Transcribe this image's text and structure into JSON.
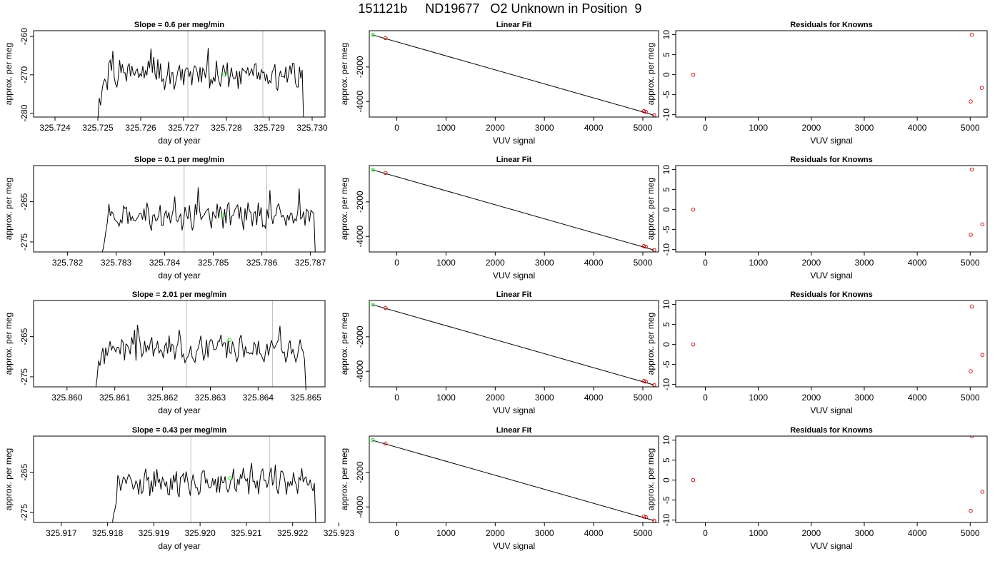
{
  "figure_title": "151121b     ND19677   O2 Unknown in Position  9",
  "colors": {
    "trace": "#000000",
    "vline": "#bebebe",
    "known": "#cc0000",
    "unknown": "#00dd00",
    "fitline": "#000000"
  },
  "chart_data": [
    {
      "type": "line",
      "row": 0,
      "col": 0,
      "title": "Slope =  0.6  per meg/min",
      "xlabel": "day of year",
      "ylabel": "approx. per meg",
      "xlim": [
        325.7235,
        325.7303
      ],
      "ylim": [
        -281,
        -258.5
      ],
      "xticks": [
        "325.724",
        "325.725",
        "325.726",
        "325.727",
        "325.728",
        "325.729",
        "325.730"
      ],
      "yticks": [
        "-260",
        "-270",
        "-280"
      ],
      "trace": {
        "x_start": 325.725,
        "x_end": 325.7298,
        "n": 150,
        "base": -270,
        "amp": 3,
        "ramp_from": -282,
        "seed": 1
      },
      "vlines": [
        325.7271,
        325.72885
      ],
      "unknown_point": {
        "x": 325.72795,
        "y": -270
      }
    },
    {
      "type": "scatter",
      "row": 0,
      "col": 1,
      "title": "Linear Fit",
      "xlabel": "VUV signal",
      "ylabel": "approx. per meg",
      "xlim": [
        -560,
        5320
      ],
      "ylim": [
        -4900,
        100
      ],
      "xticks": [
        "0",
        "1000",
        "2000",
        "3000",
        "4000",
        "5000"
      ],
      "yticks": [
        "-2000",
        "-4000"
      ],
      "fit_line": {
        "x": [
          -500,
          5230
        ],
        "y": [
          -140,
          -4790
        ]
      },
      "known_points": [
        {
          "x": -230,
          "y": -330
        },
        {
          "x": 5020,
          "y": -4560
        },
        {
          "x": 5060,
          "y": -4590
        },
        {
          "x": 5230,
          "y": -4790
        }
      ],
      "unknown_point": {
        "x": -490,
        "y": -140
      }
    },
    {
      "type": "scatter",
      "row": 0,
      "col": 2,
      "title": "Residuals for Knowns",
      "xlabel": "VUV signal",
      "ylabel": "approx. per meg",
      "xlim": [
        -560,
        5320
      ],
      "ylim": [
        -10.6,
        11
      ],
      "xticks": [
        "0",
        "1000",
        "2000",
        "3000",
        "4000",
        "5000"
      ],
      "yticks": [
        "10",
        "5",
        "0",
        "-5",
        "-10"
      ],
      "known_points": [
        {
          "x": -230,
          "y": 0
        },
        {
          "x": 5030,
          "y": 10
        },
        {
          "x": 5010,
          "y": -6.7
        },
        {
          "x": 5220,
          "y": -3.3
        }
      ]
    },
    {
      "type": "line",
      "row": 1,
      "col": 0,
      "title": "Slope =  0.1  per meg/min",
      "xlabel": "day of year",
      "ylabel": "approx. per meg",
      "xlim": [
        325.7813,
        325.7873
      ],
      "ylim": [
        -277.5,
        -256
      ],
      "xticks": [
        "325.782",
        "325.783",
        "325.784",
        "325.785",
        "325.786",
        "325.787"
      ],
      "yticks": [
        "-265",
        "-275"
      ],
      "trace": {
        "x_start": 325.7827,
        "x_end": 325.7871,
        "n": 145,
        "base": -268.5,
        "amp": 2.6,
        "ramp_from": -278,
        "seed": 2
      },
      "vlines": [
        325.7844,
        325.7861
      ],
      "unknown_point": {
        "x": 325.7852,
        "y": -268.5
      }
    },
    {
      "type": "scatter",
      "row": 1,
      "col": 1,
      "title": "Linear Fit",
      "xlabel": "VUV signal",
      "ylabel": "approx. per meg",
      "xlim": [
        -560,
        5320
      ],
      "ylim": [
        -4900,
        100
      ],
      "xticks": [
        "0",
        "1000",
        "2000",
        "3000",
        "4000",
        "5000"
      ],
      "yticks": [
        "-2000",
        "-4000"
      ],
      "fit_line": {
        "x": [
          -500,
          5230
        ],
        "y": [
          -140,
          -4790
        ]
      },
      "known_points": [
        {
          "x": -230,
          "y": -330
        },
        {
          "x": 5020,
          "y": -4560
        },
        {
          "x": 5060,
          "y": -4590
        },
        {
          "x": 5230,
          "y": -4790
        }
      ],
      "unknown_point": {
        "x": -490,
        "y": -140
      }
    },
    {
      "type": "scatter",
      "row": 1,
      "col": 2,
      "title": "Residuals for Knowns",
      "xlabel": "VUV signal",
      "ylabel": "approx. per meg",
      "xlim": [
        -560,
        5320
      ],
      "ylim": [
        -10.6,
        11
      ],
      "xticks": [
        "0",
        "1000",
        "2000",
        "3000",
        "4000",
        "5000"
      ],
      "yticks": [
        "10",
        "5",
        "0",
        "-5",
        "-10"
      ],
      "known_points": [
        {
          "x": -230,
          "y": 0
        },
        {
          "x": 5030,
          "y": 10
        },
        {
          "x": 5010,
          "y": -6.3
        },
        {
          "x": 5230,
          "y": -3.7
        }
      ]
    },
    {
      "type": "line",
      "row": 2,
      "col": 0,
      "title": "Slope =  2.01  per meg/min",
      "xlabel": "day of year",
      "ylabel": "approx. per meg",
      "xlim": [
        325.8593,
        325.8654
      ],
      "ylim": [
        -277.5,
        -256
      ],
      "xticks": [
        "325.860",
        "325.861",
        "325.862",
        "325.863",
        "325.864",
        "325.865"
      ],
      "yticks": [
        "-265",
        "-275"
      ],
      "trace": {
        "x_start": 325.8606,
        "x_end": 325.865,
        "n": 145,
        "base": -268,
        "amp": 2.7,
        "ramp_from": -278,
        "seed": 3
      },
      "vlines": [
        325.8625,
        325.8643
      ],
      "unknown_point": {
        "x": 325.8634,
        "y": -265.8
      }
    },
    {
      "type": "scatter",
      "row": 2,
      "col": 1,
      "title": "Linear Fit",
      "xlabel": "VUV signal",
      "ylabel": "approx. per meg",
      "xlim": [
        -560,
        5320
      ],
      "ylim": [
        -4900,
        100
      ],
      "xticks": [
        "0",
        "1000",
        "2000",
        "3000",
        "4000",
        "5000"
      ],
      "yticks": [
        "-2000",
        "-4000"
      ],
      "fit_line": {
        "x": [
          -500,
          5230
        ],
        "y": [
          -140,
          -4790
        ]
      },
      "known_points": [
        {
          "x": -230,
          "y": -330
        },
        {
          "x": 5020,
          "y": -4560
        },
        {
          "x": 5060,
          "y": -4590
        },
        {
          "x": 5230,
          "y": -4790
        }
      ],
      "unknown_point": {
        "x": -490,
        "y": -140
      }
    },
    {
      "type": "scatter",
      "row": 2,
      "col": 2,
      "title": "Residuals for Knowns",
      "xlabel": "VUV signal",
      "ylabel": "approx. per meg",
      "xlim": [
        -560,
        5320
      ],
      "ylim": [
        -10.6,
        11
      ],
      "xticks": [
        "0",
        "1000",
        "2000",
        "3000",
        "4000",
        "5000"
      ],
      "yticks": [
        "10",
        "5",
        "0",
        "-5",
        "-10"
      ],
      "known_points": [
        {
          "x": -230,
          "y": 0
        },
        {
          "x": 5030,
          "y": 9.5
        },
        {
          "x": 5010,
          "y": -6.7
        },
        {
          "x": 5230,
          "y": -2.6
        }
      ]
    },
    {
      "type": "line",
      "row": 3,
      "col": 0,
      "title": "Slope =  0.43  per meg/min",
      "xlabel": "day of year",
      "ylabel": "approx. per meg",
      "xlim": [
        325.9164,
        325.9227
      ],
      "ylim": [
        -277.5,
        -256
      ],
      "xticks": [
        "325.917",
        "325.918",
        "325.919",
        "325.920",
        "325.921",
        "325.922",
        "325.923"
      ],
      "yticks": [
        "-265",
        "-275"
      ],
      "trace": {
        "x_start": 325.9181,
        "x_end": 325.9225,
        "n": 145,
        "base": -267.5,
        "amp": 2.6,
        "ramp_from": -278,
        "seed": 4
      },
      "vlines": [
        325.9198,
        325.9215
      ],
      "unknown_point": {
        "x": 325.92065,
        "y": -266.5
      }
    },
    {
      "type": "scatter",
      "row": 3,
      "col": 1,
      "title": "Linear Fit",
      "xlabel": "VUV signal",
      "ylabel": "approx. per meg",
      "xlim": [
        -560,
        5320
      ],
      "ylim": [
        -4900,
        100
      ],
      "xticks": [
        "0",
        "1000",
        "2000",
        "3000",
        "4000",
        "5000"
      ],
      "yticks": [
        "-2000",
        "-4000"
      ],
      "fit_line": {
        "x": [
          -500,
          5230
        ],
        "y": [
          -140,
          -4790
        ]
      },
      "known_points": [
        {
          "x": -230,
          "y": -330
        },
        {
          "x": 5020,
          "y": -4560
        },
        {
          "x": 5060,
          "y": -4590
        },
        {
          "x": 5230,
          "y": -4790
        }
      ],
      "unknown_point": {
        "x": -490,
        "y": -140
      }
    },
    {
      "type": "scatter",
      "row": 3,
      "col": 2,
      "title": "Residuals for Knowns",
      "xlabel": "VUV signal",
      "ylabel": "approx. per meg",
      "xlim": [
        -560,
        5320
      ],
      "ylim": [
        -10.6,
        11
      ],
      "xticks": [
        "0",
        "1000",
        "2000",
        "3000",
        "4000",
        "5000"
      ],
      "yticks": [
        "10",
        "5",
        "0",
        "-5",
        "-10"
      ],
      "known_points": [
        {
          "x": -230,
          "y": 0
        },
        {
          "x": 5030,
          "y": 11
        },
        {
          "x": 5010,
          "y": -7.7
        },
        {
          "x": 5230,
          "y": -2.9
        }
      ]
    }
  ]
}
